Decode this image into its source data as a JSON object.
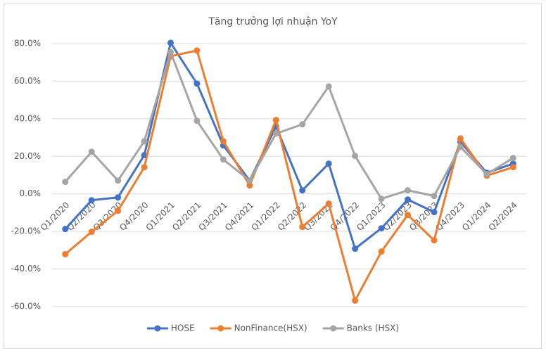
{
  "chart_data": {
    "type": "line",
    "title": "Tăng trưởng lợi nhuận YoY",
    "categories": [
      "Q1/2020",
      "Q2/2020",
      "Q3/2020",
      "Q4/2020",
      "Q1/2021",
      "Q2/2021",
      "Q3/2021",
      "Q4/2021",
      "Q1/2022",
      "Q2/2022",
      "Q3/2022",
      "Q4/2022",
      "Q1/2023",
      "Q2/2023",
      "Q3/2023",
      "Q4/2023",
      "Q1/2024",
      "Q2/2024"
    ],
    "series": [
      {
        "name": "HOSE",
        "color": "#4472c4",
        "values": [
          -18.7,
          -3.4,
          -1.9,
          20.6,
          80.4,
          58.7,
          25.8,
          7.1,
          35.9,
          1.9,
          16.1,
          -29.2,
          -18.3,
          -3.0,
          -9.7,
          27.7,
          11.2,
          16.1
        ]
      },
      {
        "name": "NonFinance(HSX)",
        "color": "#ed7d31",
        "values": [
          -32.1,
          -20.2,
          -9.0,
          14.2,
          73.3,
          76.3,
          28.0,
          4.5,
          39.3,
          -17.6,
          -5.2,
          -56.8,
          -30.7,
          -11.2,
          -24.7,
          29.5,
          9.7,
          14.2
        ]
      },
      {
        "name": "Banks (HSX)",
        "color": "#a5a5a5",
        "values": [
          6.4,
          22.4,
          7.1,
          28.0,
          75.5,
          38.9,
          18.3,
          7.1,
          32.1,
          37.0,
          57.2,
          20.2,
          -2.6,
          1.9,
          -1.1,
          25.0,
          10.5,
          19.1
        ]
      }
    ],
    "ylim": [
      -60,
      80
    ],
    "yticks": [
      {
        "value": -60,
        "label": "-60.0%"
      },
      {
        "value": -40,
        "label": "-40.0%"
      },
      {
        "value": -20,
        "label": "-20.0%"
      },
      {
        "value": 0,
        "label": "0.0%"
      },
      {
        "value": 20,
        "label": "20.0%"
      },
      {
        "value": 40,
        "label": "40.0%"
      },
      {
        "value": 60,
        "label": "60.0%"
      },
      {
        "value": 80,
        "label": "80.0%"
      }
    ],
    "grid": true,
    "legend": "bottom"
  }
}
